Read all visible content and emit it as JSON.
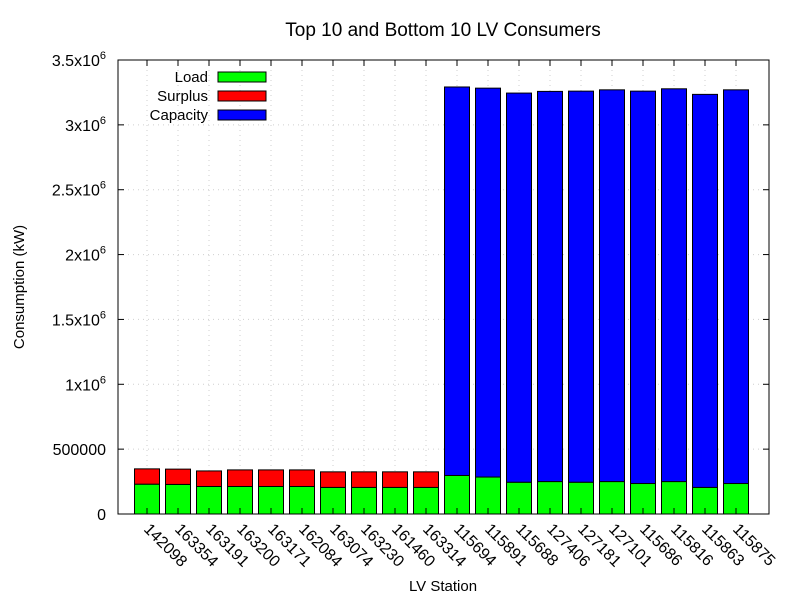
{
  "chart_data": {
    "type": "bar",
    "stacked": true,
    "title": "Top 10 and Bottom 10 LV Consumers",
    "xlabel": "LV Station",
    "ylabel": "Consumption (kW)",
    "ylim": [
      0,
      3500000
    ],
    "grid": true,
    "legend_position": "top-left",
    "y_ticks": [
      {
        "value": 0,
        "base": "0",
        "exp": ""
      },
      {
        "value": 500000,
        "base": "500000",
        "exp": ""
      },
      {
        "value": 1000000,
        "base": "1x10",
        "exp": "6"
      },
      {
        "value": 1500000,
        "base": "1.5x10",
        "exp": "6"
      },
      {
        "value": 2000000,
        "base": "2x10",
        "exp": "6"
      },
      {
        "value": 2500000,
        "base": "2.5x10",
        "exp": "6"
      },
      {
        "value": 3000000,
        "base": "3x10",
        "exp": "6"
      },
      {
        "value": 3500000,
        "base": "3.5x10",
        "exp": "6"
      }
    ],
    "categories": [
      "142098",
      "163354",
      "163191",
      "163200",
      "163171",
      "162084",
      "163074",
      "163230",
      "161460",
      "163314",
      "115694",
      "115891",
      "115688",
      "127406",
      "127181",
      "127101",
      "115686",
      "115816",
      "115863",
      "115875"
    ],
    "series": [
      {
        "name": "Load",
        "color": "#00ff00",
        "values": [
          230000,
          228000,
          212000,
          212000,
          212000,
          212000,
          205000,
          205000,
          205000,
          205000,
          297000,
          285000,
          245000,
          250000,
          245000,
          250000,
          235000,
          250000,
          205000,
          235000
        ]
      },
      {
        "name": "Surplus",
        "color": "#ff0000",
        "values": [
          118000,
          118000,
          120000,
          128000,
          128000,
          128000,
          120000,
          120000,
          120000,
          120000,
          0,
          0,
          0,
          0,
          0,
          0,
          0,
          0,
          0,
          0
        ]
      },
      {
        "name": "Capacity",
        "color": "#0000ff",
        "values": [
          0,
          0,
          0,
          0,
          0,
          0,
          0,
          0,
          0,
          0,
          2995000,
          2998000,
          3000000,
          3008000,
          3015000,
          3020000,
          3025000,
          3028000,
          3030000,
          3035000
        ]
      }
    ]
  }
}
